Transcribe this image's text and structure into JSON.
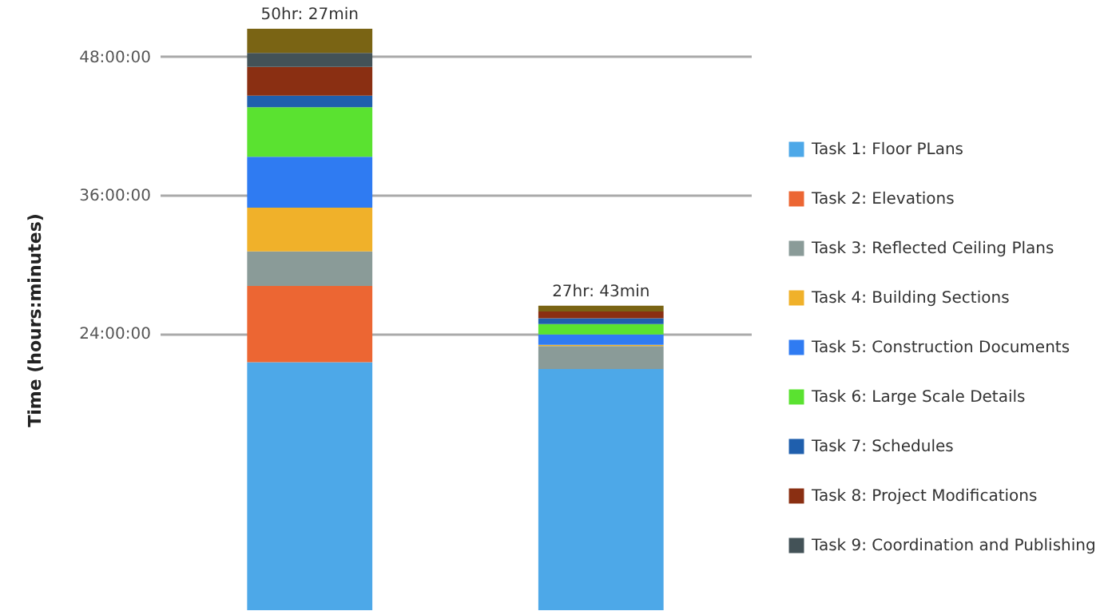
{
  "chart_data": {
    "type": "bar",
    "stacked": true,
    "ylabel": "Time (hours:minutes)",
    "categories": [
      null,
      null
    ],
    "ylim": [
      0,
      50.4
    ],
    "yticks": [
      {
        "value": 24,
        "label": "24:00:00"
      },
      {
        "value": 36,
        "label": "36:00:00"
      },
      {
        "value": 48,
        "label": "48:00:00"
      }
    ],
    "grid": "y",
    "legend": "right",
    "totals": [
      "50hr: 27min",
      "27hr: 43min"
    ],
    "series": [
      {
        "name": "Task 1: Floor PLans",
        "color": "#4da8e8",
        "values": [
          21.5,
          20.9
        ]
      },
      {
        "name": "Task 2: Elevations",
        "color": "#ec6633",
        "values": [
          6.6,
          0
        ]
      },
      {
        "name": "Task 3: Reflected Ceiling Plans",
        "color": "#8a9b98",
        "values": [
          3.0,
          2.0
        ]
      },
      {
        "name": "Task 4: Building Sections",
        "color": "#f0b12a",
        "values": [
          3.8,
          0.1
        ]
      },
      {
        "name": "Task 5: Construction Documents",
        "color": "#2f7bf2",
        "values": [
          4.4,
          0.9
        ]
      },
      {
        "name": "Task 6: Large Scale Details",
        "color": "#5ae230",
        "values": [
          4.3,
          0.9
        ]
      },
      {
        "name": "Task 7: Schedules",
        "color": "#1f5fad",
        "values": [
          1.0,
          0.5
        ]
      },
      {
        "name": "Task 8: Project Modifications",
        "color": "#8a2f12",
        "values": [
          2.5,
          0.6
        ]
      },
      {
        "name": "Task 9: Coordination and Publishing",
        "color": "#435257",
        "values": [
          1.2,
          0
        ]
      },
      {
        "color": "#7a6414",
        "values": [
          2.1,
          0.5
        ]
      }
    ]
  }
}
